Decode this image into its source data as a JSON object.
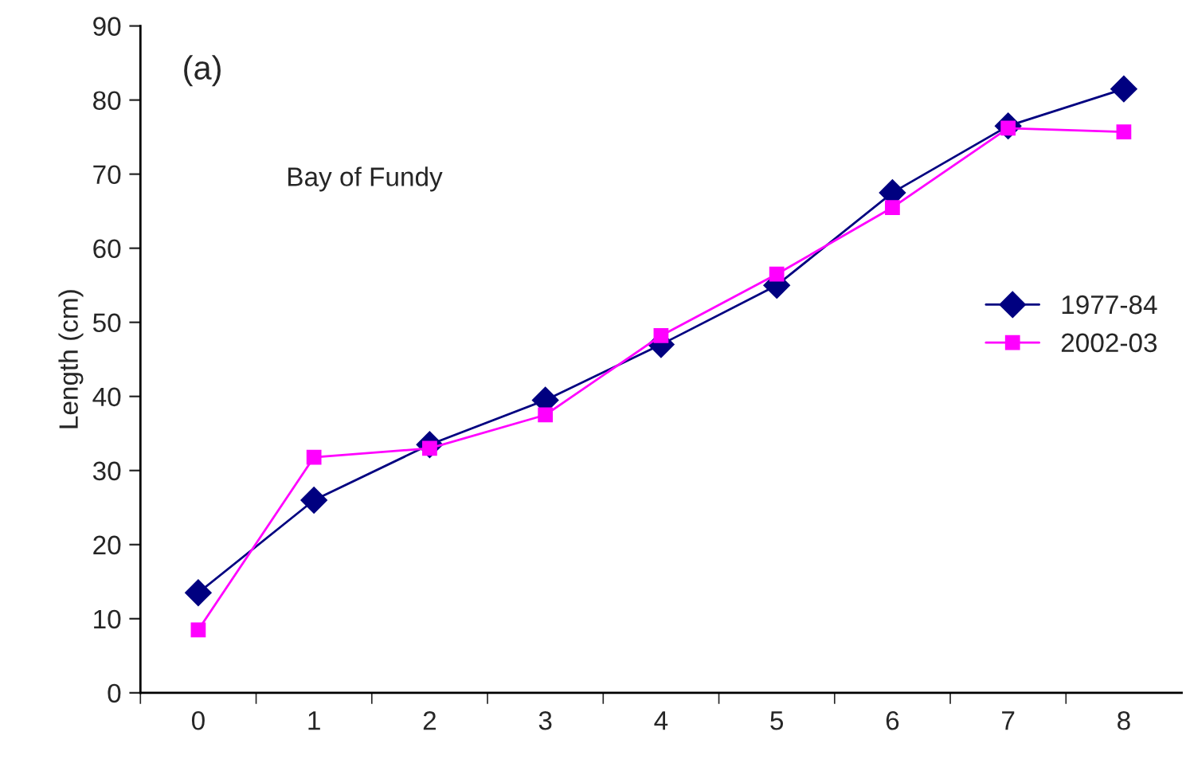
{
  "chart_data": {
    "type": "line",
    "ylabel": "Length (cm)",
    "categories": [
      "0",
      "1",
      "2",
      "3",
      "4",
      "5",
      "6",
      "7",
      "8"
    ],
    "series": [
      {
        "name": "1977-84",
        "color": "#000080",
        "marker": "diamond",
        "values": [
          13.5,
          26,
          33.5,
          39.5,
          47,
          55,
          67.5,
          76.5,
          81.5
        ]
      },
      {
        "name": "2002-03",
        "color": "#ff00ff",
        "marker": "square",
        "values": [
          8.5,
          31.8,
          33,
          37.5,
          48.2,
          56.5,
          65.5,
          76.2,
          75.7
        ]
      }
    ],
    "ylim": [
      0,
      90
    ],
    "yticks": [
      0,
      10,
      20,
      30,
      40,
      50,
      60,
      70,
      80,
      90
    ],
    "annotations": [
      "(a)",
      "Bay of Fundy"
    ],
    "legend": "right",
    "grid": false
  }
}
